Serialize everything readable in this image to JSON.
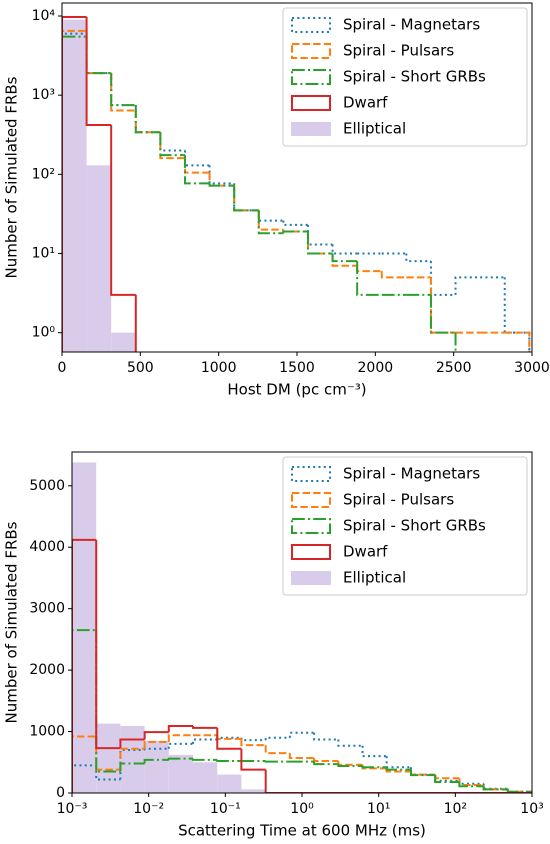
{
  "chart_data": [
    {
      "type": "histogram",
      "xlabel": "Host DM (pc cm⁻³)",
      "ylabel": "Number of Simulated FRBs",
      "yscale": "log",
      "xscale": "linear",
      "legend": "upper right",
      "grid": false,
      "xlim": [
        0,
        3000
      ],
      "xticks": [
        0,
        500,
        1000,
        1500,
        2000,
        2500,
        3000
      ],
      "ylim": [
        0.57,
        14600
      ],
      "yticks": [
        {
          "value": 1,
          "label": "10⁰"
        },
        {
          "value": 10,
          "label": "10¹"
        },
        {
          "value": 100,
          "label": "10²"
        },
        {
          "value": 1000,
          "label": "10³"
        },
        {
          "value": 10000,
          "label": "10⁴"
        }
      ],
      "bins": [
        0,
        157,
        314,
        471,
        628,
        785,
        942,
        1099,
        1256,
        1413,
        1570,
        1727,
        1884,
        2041,
        2198,
        2355,
        2512,
        2669,
        2826,
        2983
      ],
      "series": [
        {
          "name": "Spiral - Magnetars",
          "color": "#1f77b4",
          "histtype": "step",
          "linestyle": "dotted",
          "values": [
            6000,
            1900,
            750,
            340,
            200,
            130,
            77,
            35,
            26,
            23,
            13,
            10,
            10,
            10,
            8,
            3,
            5,
            5,
            1
          ]
        },
        {
          "name": "Spiral - Pulsars",
          "color": "#ff7f0e",
          "histtype": "step",
          "linestyle": "dashed",
          "values": [
            6500,
            1900,
            640,
            340,
            160,
            105,
            72,
            35,
            20,
            19,
            10,
            7,
            6,
            5,
            5,
            1,
            1,
            1,
            1
          ]
        },
        {
          "name": "Spiral - Short GRBs",
          "color": "#2ca02c",
          "histtype": "step",
          "linestyle": "dashdot",
          "values": [
            5500,
            1900,
            750,
            340,
            175,
            77,
            72,
            35,
            18,
            19,
            10,
            8,
            3,
            3,
            3,
            1,
            0,
            0,
            0
          ]
        },
        {
          "name": "Dwarf",
          "color": "#d62728",
          "histtype": "step",
          "linestyle": "solid",
          "values": [
            9700,
            420,
            3,
            0,
            0,
            0,
            0,
            0,
            0,
            0,
            0,
            0,
            0,
            0,
            0,
            0,
            0,
            0,
            0
          ]
        },
        {
          "name": "Elliptical",
          "color": "#d9cceb",
          "histtype": "stepfilled",
          "linestyle": "solid",
          "values": [
            9000,
            130,
            1,
            0,
            0,
            0,
            0,
            0,
            0,
            0,
            0,
            0,
            0,
            0,
            0,
            0,
            0,
            0,
            0
          ]
        }
      ]
    },
    {
      "type": "histogram",
      "xlabel": "Scattering Time at 600 MHz (ms)",
      "ylabel": "Number of Simulated FRBs",
      "yscale": "linear",
      "xscale": "log",
      "legend": "upper right",
      "grid": false,
      "xlim": [
        0.001,
        1000
      ],
      "xticks": [
        {
          "value": 0.001,
          "label": "10⁻³"
        },
        {
          "value": 0.01,
          "label": "10⁻²"
        },
        {
          "value": 0.1,
          "label": "10⁻¹"
        },
        {
          "value": 1,
          "label": "10⁰"
        },
        {
          "value": 10,
          "label": "10¹"
        },
        {
          "value": 100,
          "label": "10²"
        },
        {
          "value": 1000,
          "label": "10³"
        }
      ],
      "ylim": [
        0,
        5550
      ],
      "yticks": [
        0,
        1000,
        2000,
        3000,
        4000,
        5000
      ],
      "bins": [
        0.001,
        0.00207,
        0.00428,
        0.00886,
        0.0183,
        0.0379,
        0.0785,
        0.162,
        0.336,
        0.695,
        1.44,
        2.98,
        6.16,
        12.7,
        26.4,
        54.6,
        113,
        234,
        483,
        1000
      ],
      "series": [
        {
          "name": "Spiral - Magnetars",
          "color": "#1f77b4",
          "histtype": "step",
          "linestyle": "dotted",
          "values": [
            450,
            220,
            700,
            720,
            800,
            870,
            900,
            860,
            900,
            980,
            870,
            770,
            600,
            420,
            300,
            200,
            150,
            70,
            20
          ]
        },
        {
          "name": "Spiral - Pulsars",
          "color": "#ff7f0e",
          "histtype": "step",
          "linestyle": "dashed",
          "values": [
            920,
            380,
            720,
            830,
            940,
            940,
            880,
            780,
            650,
            570,
            520,
            460,
            400,
            350,
            300,
            240,
            130,
            60,
            20
          ]
        },
        {
          "name": "Spiral - Short GRBs",
          "color": "#2ca02c",
          "histtype": "step",
          "linestyle": "dashdot",
          "values": [
            2650,
            350,
            480,
            540,
            560,
            540,
            520,
            520,
            510,
            510,
            470,
            440,
            420,
            380,
            290,
            180,
            110,
            60,
            20
          ]
        },
        {
          "name": "Dwarf",
          "color": "#d62728",
          "histtype": "step",
          "linestyle": "solid",
          "values": [
            4120,
            730,
            870,
            990,
            1090,
            1060,
            720,
            380,
            0,
            0,
            0,
            0,
            0,
            0,
            0,
            0,
            0,
            0,
            0
          ]
        },
        {
          "name": "Elliptical",
          "color": "#d9cceb",
          "histtype": "stepfilled",
          "linestyle": "solid",
          "values": [
            5380,
            1130,
            1090,
            850,
            620,
            500,
            300,
            60,
            0,
            0,
            0,
            0,
            0,
            0,
            0,
            0,
            0,
            0,
            0
          ]
        }
      ]
    }
  ]
}
